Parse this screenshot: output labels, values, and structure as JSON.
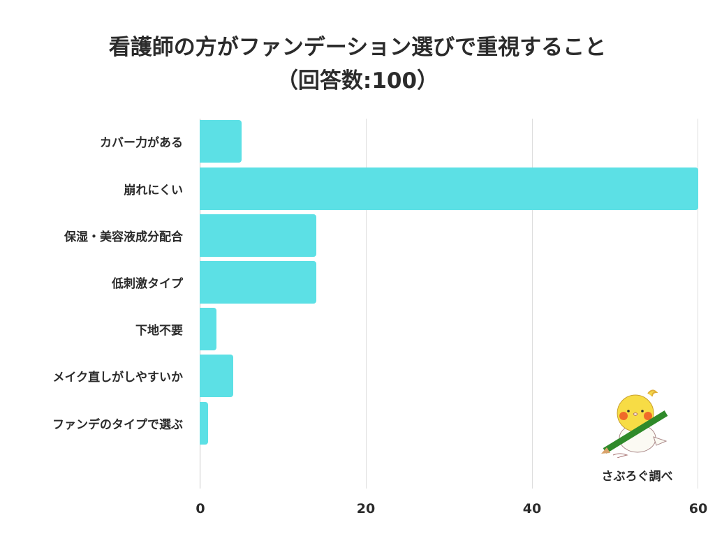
{
  "title": {
    "line1": "看護師の方がファンデーション選びで重視すること",
    "line2": "（回答数:100）"
  },
  "credit": "さぶろぐ調べ",
  "colors": {
    "bar": "#5ce0e5",
    "text": "#2b2b2b",
    "grid": "#dedede"
  },
  "chart_data": {
    "type": "bar",
    "orientation": "horizontal",
    "title": "看護師の方がファンデーション選びで重視すること（回答数:100）",
    "categories": [
      "カバー力がある",
      "崩れにくい",
      "保湿・美容液成分配合",
      "低刺激タイプ",
      "下地不要",
      "メイク直しがしやすいか",
      "ファンデのタイプで選ぶ"
    ],
    "values": [
      5,
      60,
      14,
      14,
      2,
      4,
      1
    ],
    "xlabel": "",
    "ylabel": "",
    "xlim": [
      0,
      60
    ],
    "xticks": [
      "0",
      "20",
      "40",
      "60"
    ],
    "grid": true,
    "legend": null,
    "annotation": "さぶろぐ調べ"
  }
}
